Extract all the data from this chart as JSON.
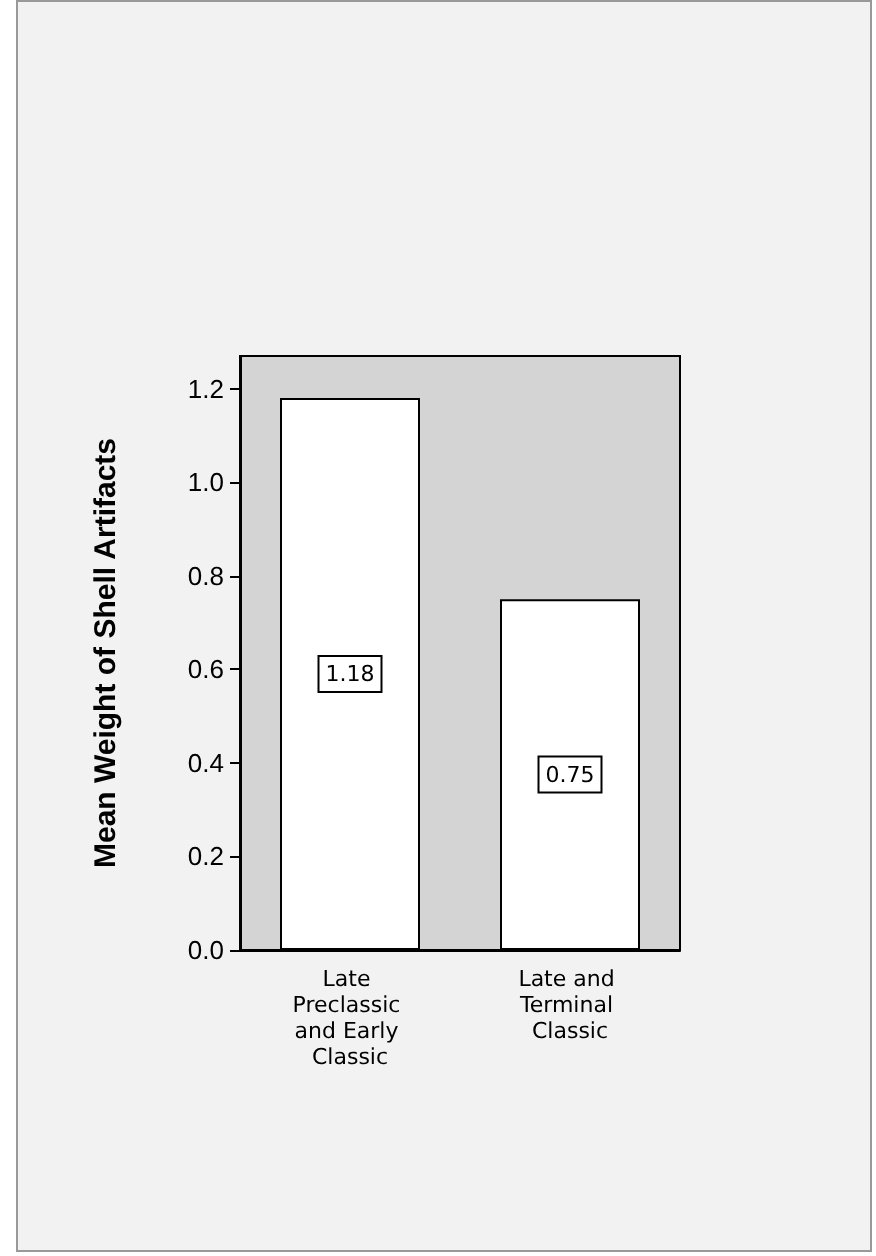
{
  "chart_data": {
    "type": "bar",
    "ylabel": "Mean Weight of Shell Artifacts",
    "categories": [
      "Late Preclassic and Early Classic",
      "Late and Terminal Classic"
    ],
    "values": [
      1.18,
      0.75
    ],
    "color": "#ffffff",
    "ylim": [
      0,
      1.27
    ],
    "yticks": [
      {
        "value": 0,
        "label": "0.0"
      },
      0.2,
      0.4,
      0.6,
      0.8,
      {
        "value": 1,
        "label": "1.0"
      },
      1.2
    ],
    "data_labels": true,
    "grid": false
  }
}
